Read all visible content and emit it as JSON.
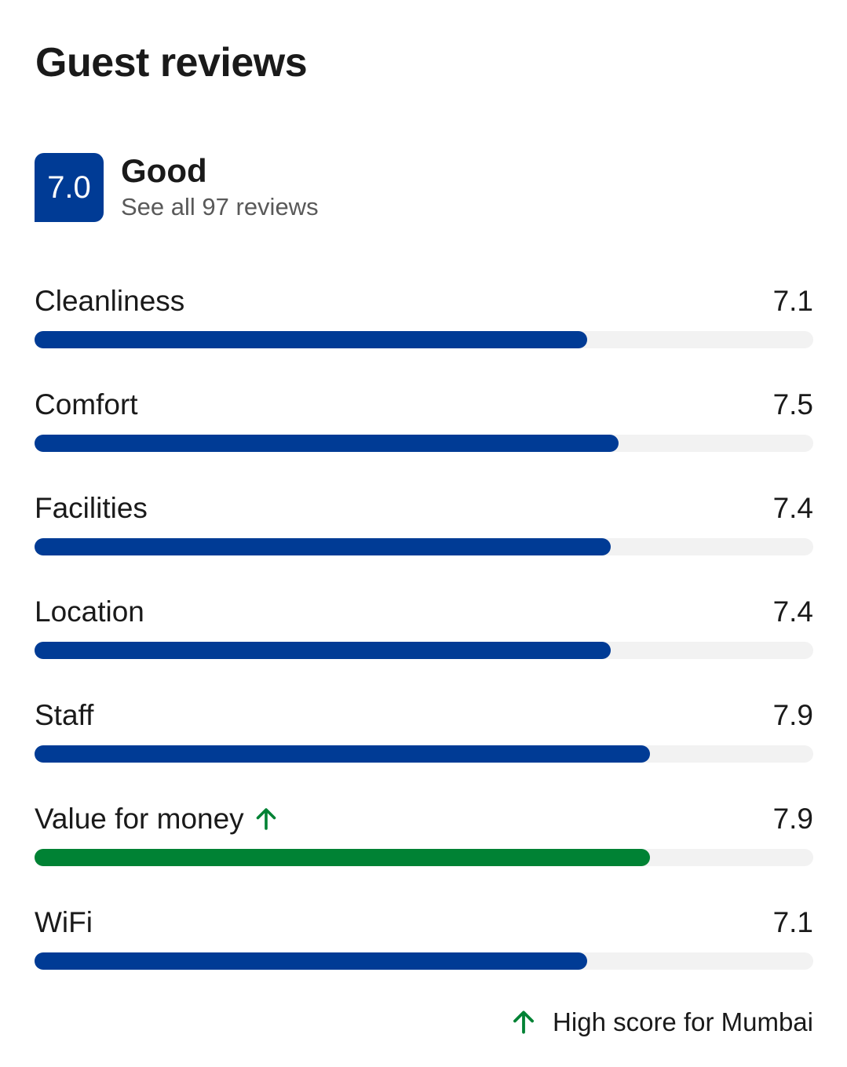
{
  "title": "Guest reviews",
  "summary": {
    "score": "7.0",
    "rating_word": "Good",
    "see_all_label": "See all 97 reviews"
  },
  "categories": [
    {
      "label": "Cleanliness",
      "value": "7.1",
      "score": 7.1,
      "highlight": false
    },
    {
      "label": "Comfort",
      "value": "7.5",
      "score": 7.5,
      "highlight": false
    },
    {
      "label": "Facilities",
      "value": "7.4",
      "score": 7.4,
      "highlight": false
    },
    {
      "label": "Location",
      "value": "7.4",
      "score": 7.4,
      "highlight": false
    },
    {
      "label": "Staff",
      "value": "7.9",
      "score": 7.9,
      "highlight": false
    },
    {
      "label": "Value for money",
      "value": "7.9",
      "score": 7.9,
      "highlight": true
    },
    {
      "label": "WiFi",
      "value": "7.1",
      "score": 7.1,
      "highlight": false
    }
  ],
  "score_max": 10,
  "footnote": {
    "icon": "arrow-up-icon",
    "text": "High score for Mumbai"
  },
  "colors": {
    "brand_blue": "#003b95",
    "highlight_green": "#008234",
    "track_gray": "#f2f2f2"
  }
}
